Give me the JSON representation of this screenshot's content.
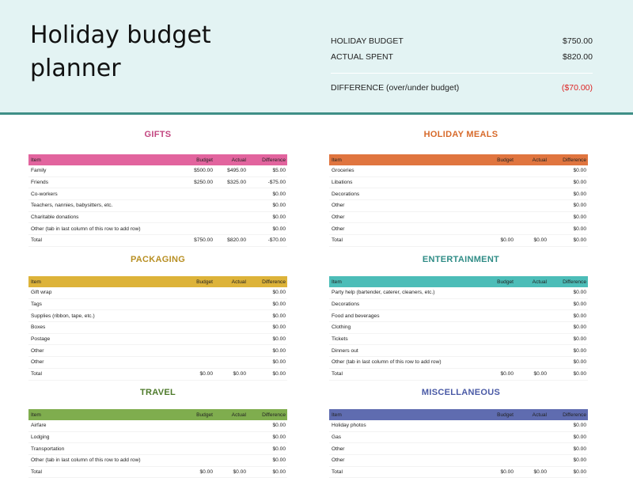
{
  "title": "Holiday budget planner",
  "summary": {
    "budget_label": "HOLIDAY BUDGET",
    "budget_value": "$750.00",
    "actual_label": "ACTUAL SPENT",
    "actual_value": "$820.00",
    "diff_label": "DIFFERENCE (over/under budget)",
    "diff_value": "($70.00)"
  },
  "columns": {
    "item": "Item",
    "budget": "Budget",
    "actual": "Actual",
    "diff": "Difference"
  },
  "colors": {
    "gifts": "#e2649e",
    "meals": "#e0753f",
    "packaging": "#ddb339",
    "entertainment": "#4cbdb8",
    "travel": "#7fad4e",
    "misc": "#5f6cb0",
    "gifts_title": "#c2457f",
    "meals_title": "#d76a2b",
    "packaging_title": "#b88f23",
    "entertainment_title": "#2f8c86",
    "travel_title": "#4d7a2a",
    "misc_title": "#4a5aa6"
  },
  "sections": {
    "gifts": {
      "title": "GIFTS",
      "rows": [
        {
          "item": "Family",
          "budget": "$500.00",
          "actual": "$495.00",
          "diff": "$5.00"
        },
        {
          "item": "Friends",
          "budget": "$250.00",
          "actual": "$325.00",
          "diff": "-$75.00"
        },
        {
          "item": "Co-workers",
          "budget": "",
          "actual": "",
          "diff": "$0.00"
        },
        {
          "item": "Teachers, nannies, babysitters, etc.",
          "budget": "",
          "actual": "",
          "diff": "$0.00"
        },
        {
          "item": "Charitable donations",
          "budget": "",
          "actual": "",
          "diff": "$0.00"
        },
        {
          "item": "Other (tab in last column of this row to add row)",
          "budget": "",
          "actual": "",
          "diff": "$0.00"
        },
        {
          "item": "Total",
          "budget": "$750.00",
          "actual": "$820.00",
          "diff": "-$70.00"
        }
      ]
    },
    "meals": {
      "title": "HOLIDAY MEALS",
      "rows": [
        {
          "item": "Groceries",
          "budget": "",
          "actual": "",
          "diff": "$0.00"
        },
        {
          "item": "Libations",
          "budget": "",
          "actual": "",
          "diff": "$0.00"
        },
        {
          "item": "Decorations",
          "budget": "",
          "actual": "",
          "diff": "$0.00"
        },
        {
          "item": "Other",
          "budget": "",
          "actual": "",
          "diff": "$0.00"
        },
        {
          "item": "Other",
          "budget": "",
          "actual": "",
          "diff": "$0.00"
        },
        {
          "item": "Other",
          "budget": "",
          "actual": "",
          "diff": "$0.00"
        },
        {
          "item": "Total",
          "budget": "$0.00",
          "actual": "$0.00",
          "diff": "$0.00"
        }
      ]
    },
    "packaging": {
      "title": "PACKAGING",
      "rows": [
        {
          "item": "Gift wrap",
          "budget": "",
          "actual": "",
          "diff": "$0.00"
        },
        {
          "item": "Tags",
          "budget": "",
          "actual": "",
          "diff": "$0.00"
        },
        {
          "item": "Supplies (ribbon, tape, etc.)",
          "budget": "",
          "actual": "",
          "diff": "$0.00"
        },
        {
          "item": "Boxes",
          "budget": "",
          "actual": "",
          "diff": "$0.00"
        },
        {
          "item": "Postage",
          "budget": "",
          "actual": "",
          "diff": "$0.00"
        },
        {
          "item": "Other",
          "budget": "",
          "actual": "",
          "diff": "$0.00"
        },
        {
          "item": "Other",
          "budget": "",
          "actual": "",
          "diff": "$0.00"
        },
        {
          "item": "Total",
          "budget": "$0.00",
          "actual": "$0.00",
          "diff": "$0.00"
        }
      ]
    },
    "entertainment": {
      "title": "ENTERTAINMENT",
      "rows": [
        {
          "item": "Party help (bartender, caterer, cleaners, etc.)",
          "budget": "",
          "actual": "",
          "diff": "$0.00"
        },
        {
          "item": "Decorations",
          "budget": "",
          "actual": "",
          "diff": "$0.00"
        },
        {
          "item": "Food and beverages",
          "budget": "",
          "actual": "",
          "diff": "$0.00"
        },
        {
          "item": "Clothing",
          "budget": "",
          "actual": "",
          "diff": "$0.00"
        },
        {
          "item": "Tickets",
          "budget": "",
          "actual": "",
          "diff": "$0.00"
        },
        {
          "item": "Dinners out",
          "budget": "",
          "actual": "",
          "diff": "$0.00"
        },
        {
          "item": "Other (tab in last column of this row to add row)",
          "budget": "",
          "actual": "",
          "diff": "$0.00"
        },
        {
          "item": "Total",
          "budget": "$0.00",
          "actual": "$0.00",
          "diff": "$0.00"
        }
      ]
    },
    "travel": {
      "title": "TRAVEL",
      "rows": [
        {
          "item": "Airfare",
          "budget": "",
          "actual": "",
          "diff": "$0.00"
        },
        {
          "item": "Lodging",
          "budget": "",
          "actual": "",
          "diff": "$0.00"
        },
        {
          "item": "Transportation",
          "budget": "",
          "actual": "",
          "diff": "$0.00"
        },
        {
          "item": "Other (tab in last column of this row to add row)",
          "budget": "",
          "actual": "",
          "diff": "$0.00"
        },
        {
          "item": "Total",
          "budget": "$0.00",
          "actual": "$0.00",
          "diff": "$0.00"
        }
      ]
    },
    "misc": {
      "title": "MISCELLANEOUS",
      "rows": [
        {
          "item": "Holiday photos",
          "budget": "",
          "actual": "",
          "diff": "$0.00"
        },
        {
          "item": "Gas",
          "budget": "",
          "actual": "",
          "diff": "$0.00"
        },
        {
          "item": "Other",
          "budget": "",
          "actual": "",
          "diff": "$0.00"
        },
        {
          "item": "Other",
          "budget": "",
          "actual": "",
          "diff": "$0.00"
        },
        {
          "item": "Total",
          "budget": "$0.00",
          "actual": "$0.00",
          "diff": "$0.00"
        }
      ]
    }
  }
}
